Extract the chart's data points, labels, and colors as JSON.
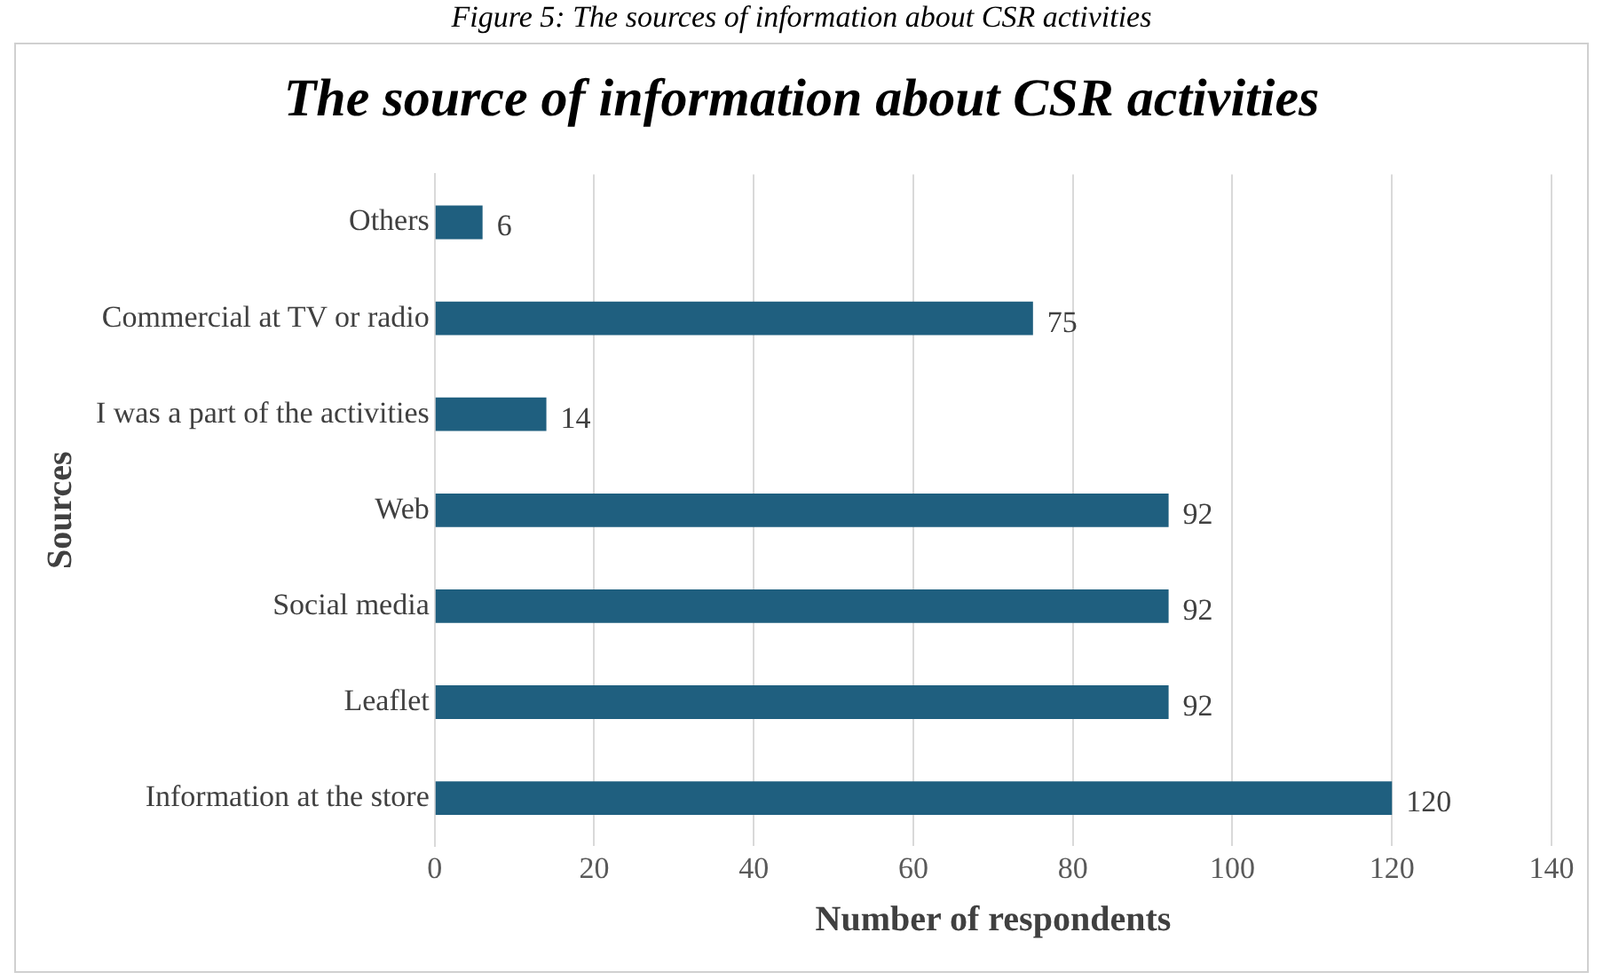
{
  "chart_data": {
    "type": "bar",
    "orientation": "horizontal",
    "title": "The source of information about CSR activities",
    "xlabel": "Number of respondents",
    "ylabel": "Sources",
    "annotations": [
      "Figure 5: The sources of information about CSR activities"
    ],
    "categories": [
      "Others",
      "Commercial at TV or radio",
      "I was a part of the activities",
      "Web",
      "Social media",
      "Leaflet",
      "Information at the store"
    ],
    "values": [
      6,
      75,
      14,
      92,
      92,
      92,
      120
    ],
    "color": "#1f5f7f",
    "xlim": [
      0,
      140
    ],
    "xticks": [
      0,
      20,
      40,
      60,
      80,
      100,
      120,
      140
    ],
    "grid": "x",
    "data_labels": true
  }
}
